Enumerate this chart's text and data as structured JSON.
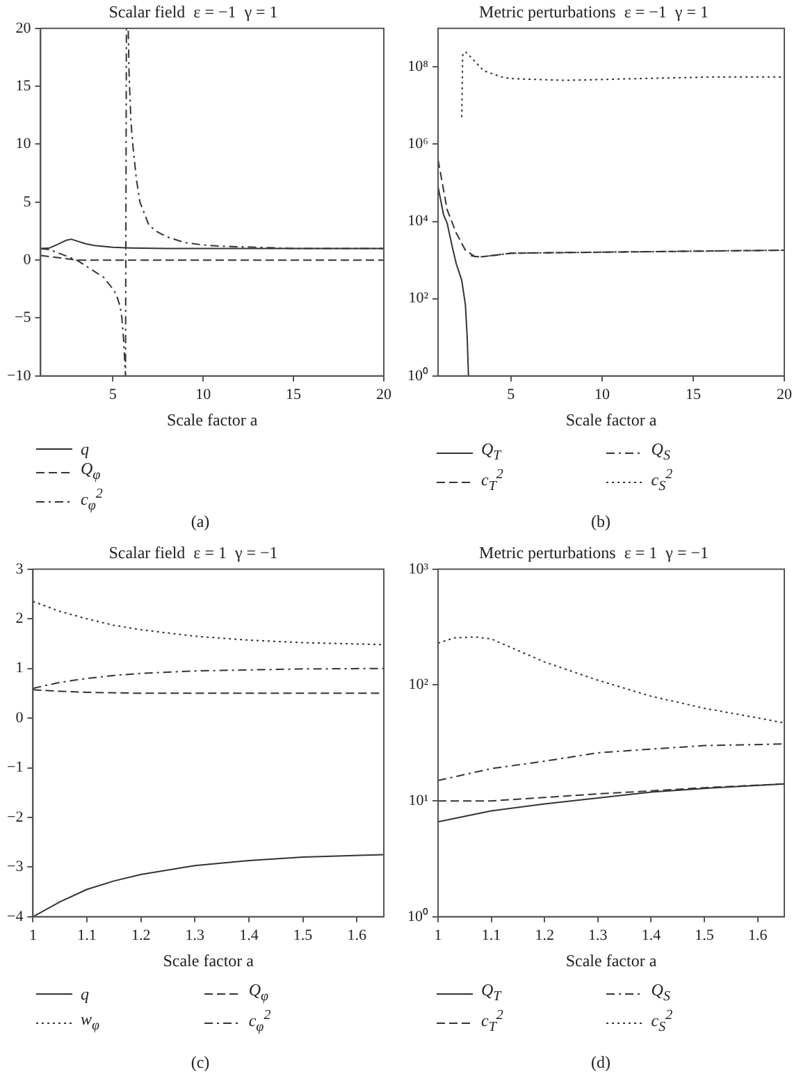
{
  "chart_data": [
    {
      "type": "line",
      "title": "Scalar field  ε = −1  γ = 1",
      "xlabel": "Scale factor a",
      "xlim": [
        1,
        20
      ],
      "xticks": [
        5,
        10,
        15,
        20
      ],
      "ylim": [
        -10,
        20
      ],
      "yticks": [
        {
          "value": -10,
          "label": "−10"
        },
        {
          "value": -5,
          "label": "−5"
        },
        0,
        5,
        10,
        15,
        20
      ],
      "grid": false,
      "legend": "bottom",
      "marker": "none",
      "annotations": [
        "(a)"
      ],
      "series": [
        {
          "name": "q",
          "color": "#333333",
          "line_style": "solid",
          "x": [
            1,
            1.5,
            2,
            2.4,
            2.7,
            3,
            3.5,
            4,
            5,
            6,
            8,
            10,
            15,
            20
          ],
          "values": [
            1,
            1.05,
            1.4,
            1.7,
            1.8,
            1.65,
            1.4,
            1.25,
            1.1,
            1.05,
            1,
            1,
            1,
            1
          ]
        },
        {
          "name": "Q$_{φ}$",
          "color": "#333333",
          "line_style": "dashed",
          "x": [
            1,
            1.5,
            2,
            2.5,
            3,
            4,
            6,
            10,
            15,
            20
          ],
          "values": [
            0.4,
            0.3,
            0.2,
            0.1,
            0,
            0,
            0,
            0,
            0,
            0
          ]
        },
        {
          "name": "c$_{φ}$$^{2}$",
          "color": "#333333",
          "line_style": "dashdot",
          "x": [
            1,
            1.5,
            2,
            2.5,
            3,
            3.5,
            4,
            4.5,
            5,
            5.2,
            5.4,
            5.5,
            5.6,
            5.7,
            5.75,
            5.85,
            5.9,
            6,
            6.1,
            6.3,
            6.5,
            7,
            7.5,
            8,
            9,
            10,
            11,
            13,
            15,
            20
          ],
          "values": [
            1,
            0.9,
            0.6,
            0.3,
            0,
            -0.5,
            -1,
            -1.5,
            -2.5,
            -3,
            -4,
            -5,
            -7,
            -10,
            20,
            20,
            16,
            12,
            10,
            7,
            5,
            3,
            2.4,
            2,
            1.5,
            1.3,
            1.2,
            1.1,
            1,
            1
          ]
        }
      ]
    },
    {
      "type": "line",
      "title": "Metric perturbations  ε = −1  γ = 1",
      "xlabel": "Scale factor a",
      "xlim": [
        1,
        20
      ],
      "xticks": [
        5,
        10,
        15,
        20
      ],
      "log": "y",
      "ylim": [
        1,
        1000000000
      ],
      "yticks": [
        {
          "value": 1,
          "label": "10⁰"
        },
        {
          "value": 100,
          "label": "10²"
        },
        {
          "value": 10000,
          "label": "10⁴"
        },
        {
          "value": 1000000,
          "label": "10⁶"
        },
        {
          "value": 100000000,
          "label": "10⁸"
        }
      ],
      "grid": false,
      "legend": "bottom",
      "marker": "none",
      "annotations": [
        "(b)"
      ],
      "series": [
        {
          "name": "Q$_{T}$",
          "color": "#333333",
          "line_style": "solid",
          "x": [
            1,
            1.3,
            1.5,
            1.8,
            2,
            2.3,
            2.5,
            2.6,
            2.67
          ],
          "values": [
            80000,
            15000,
            9000,
            2000,
            800,
            300,
            70,
            10,
            1
          ]
        },
        {
          "name": "c$_{T}$$^{2}$",
          "color": "#333333",
          "line_style": "dashed",
          "x": [
            1,
            1.5,
            2,
            2.5,
            3,
            3.3,
            5,
            10,
            20
          ],
          "values": [
            400000,
            20000,
            5000,
            1800,
            1250,
            1200,
            1500,
            1600,
            1800
          ]
        },
        {
          "name": "Q$_{S}$",
          "color": "#333333",
          "line_style": "dashdot",
          "x": [
            2.8,
            3,
            3.3,
            5,
            7,
            10,
            15,
            20
          ],
          "values": [
            1300,
            1250,
            1200,
            1500,
            1550,
            1600,
            1700,
            1800
          ]
        },
        {
          "name": "c$_{S}$$^{2}$",
          "color": "#333333",
          "line_style": "dotted",
          "x": [
            2.3,
            2.35,
            2.5,
            2.8,
            3.5,
            4.5,
            5,
            8,
            12,
            16,
            20
          ],
          "values": [
            5000000,
            200000000,
            250000000,
            180000000,
            80000000,
            55000000,
            50000000,
            45000000,
            50000000,
            55000000,
            55000000
          ]
        }
      ]
    },
    {
      "type": "line",
      "title": "Scalar field  ε = 1  γ = −1",
      "xlabel": "Scale factor a",
      "xlim": [
        1,
        1.65
      ],
      "xticks": [
        1,
        1.1,
        1.2,
        1.3,
        1.4,
        1.5,
        1.6
      ],
      "ylim": [
        -4,
        3
      ],
      "yticks": [
        {
          "value": -4,
          "label": "−4"
        },
        {
          "value": -3,
          "label": "−3"
        },
        {
          "value": -2,
          "label": "−2"
        },
        {
          "value": -1,
          "label": "−1"
        },
        0,
        1,
        2,
        3
      ],
      "grid": false,
      "legend": "bottom",
      "marker": "none",
      "annotations": [
        "(c)"
      ],
      "series": [
        {
          "name": "q",
          "color": "#333333",
          "line_style": "solid",
          "x": [
            1,
            1.05,
            1.1,
            1.15,
            1.2,
            1.3,
            1.4,
            1.5,
            1.65
          ],
          "values": [
            -4,
            -3.7,
            -3.45,
            -3.28,
            -3.15,
            -2.97,
            -2.87,
            -2.8,
            -2.75
          ]
        },
        {
          "name": "w$_{φ}$",
          "color": "#333333",
          "line_style": "dotted",
          "x": [
            1,
            1.05,
            1.1,
            1.15,
            1.2,
            1.3,
            1.4,
            1.5,
            1.65
          ],
          "values": [
            2.35,
            2.15,
            2.0,
            1.87,
            1.78,
            1.65,
            1.57,
            1.52,
            1.48
          ]
        },
        {
          "name": "Q$_{φ}$",
          "color": "#333333",
          "line_style": "dashed",
          "x": [
            1,
            1.05,
            1.1,
            1.2,
            1.3,
            1.4,
            1.5,
            1.65
          ],
          "values": [
            0.57,
            0.54,
            0.52,
            0.5,
            0.5,
            0.5,
            0.5,
            0.5
          ]
        },
        {
          "name": "c$_{φ}$$^{2}$",
          "color": "#333333",
          "line_style": "dashdot",
          "x": [
            1,
            1.05,
            1.1,
            1.15,
            1.2,
            1.3,
            1.4,
            1.5,
            1.65
          ],
          "values": [
            0.6,
            0.72,
            0.8,
            0.86,
            0.9,
            0.95,
            0.97,
            0.99,
            1.0
          ]
        }
      ]
    },
    {
      "type": "line",
      "title": "Metric perturbations  ε = 1  γ = −1",
      "xlabel": "Scale factor a",
      "xlim": [
        1,
        1.65
      ],
      "xticks": [
        1,
        1.1,
        1.2,
        1.3,
        1.4,
        1.5,
        1.6
      ],
      "log": "y",
      "ylim": [
        1,
        1000
      ],
      "yticks": [
        {
          "value": 1,
          "label": "10⁰"
        },
        {
          "value": 10,
          "label": "10¹"
        },
        {
          "value": 100,
          "label": "10²"
        },
        {
          "value": 1000,
          "label": "10³"
        }
      ],
      "grid": false,
      "legend": "bottom",
      "marker": "none",
      "annotations": [
        "(d)"
      ],
      "series": [
        {
          "name": "Q$_{T}$",
          "color": "#333333",
          "line_style": "solid",
          "x": [
            1,
            1.1,
            1.2,
            1.3,
            1.4,
            1.5,
            1.65
          ],
          "values": [
            6.6,
            8.2,
            9.4,
            10.6,
            11.9,
            12.8,
            14
          ]
        },
        {
          "name": "c$_{T}$$^{2}$",
          "color": "#333333",
          "line_style": "dashed",
          "x": [
            1,
            1.1,
            1.2,
            1.3,
            1.4,
            1.5,
            1.65
          ],
          "values": [
            10,
            10,
            10.7,
            11.5,
            12.2,
            13,
            14
          ]
        },
        {
          "name": "Q$_{S}$",
          "color": "#333333",
          "line_style": "dashdot",
          "x": [
            1,
            1.1,
            1.2,
            1.3,
            1.4,
            1.5,
            1.65
          ],
          "values": [
            15,
            19,
            22,
            26,
            28,
            30,
            31
          ]
        },
        {
          "name": "c$_{S}$$^{2}$",
          "color": "#333333",
          "line_style": "dotted",
          "x": [
            1,
            1.03,
            1.07,
            1.1,
            1.2,
            1.3,
            1.4,
            1.5,
            1.6,
            1.65
          ],
          "values": [
            230,
            255,
            260,
            250,
            158,
            110,
            80,
            63,
            52,
            47
          ]
        }
      ]
    }
  ]
}
